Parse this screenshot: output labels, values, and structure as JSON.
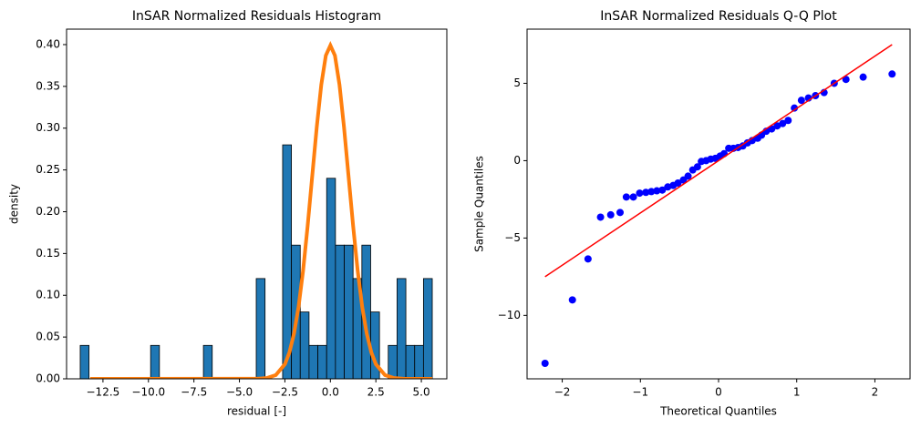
{
  "chart_data": [
    {
      "type": "histogram",
      "title": "InSAR Normalized Residuals Histogram",
      "xlabel": "residual [-]",
      "ylabel": "density",
      "bins": [
        -13.75,
        -13.266,
        -12.783,
        -12.299,
        -11.815,
        -11.331,
        -10.848,
        -10.364,
        -9.88,
        -9.396,
        -8.913,
        -8.429,
        -7.945,
        -7.461,
        -6.978,
        -6.494,
        -6.01,
        -5.526,
        -5.043,
        -4.559,
        -4.075,
        -3.591,
        -3.108,
        -2.624,
        -2.14,
        -1.656,
        -1.173,
        -0.689,
        -0.205,
        0.279,
        0.763,
        1.246,
        1.73,
        2.214,
        2.698,
        3.181,
        3.665,
        4.149,
        4.633,
        5.116,
        5.6
      ],
      "values": [
        0.04,
        0,
        0,
        0,
        0,
        0,
        0,
        0,
        0.04,
        0,
        0,
        0,
        0,
        0,
        0.04,
        0,
        0,
        0,
        0,
        0,
        0.12,
        0,
        0,
        0.28,
        0.16,
        0.08,
        0.04,
        0.04,
        0.24,
        0.16,
        0.16,
        0.12,
        0.16,
        0.08,
        0,
        0.04,
        0.12,
        0.04,
        0.04,
        0.12
      ],
      "color": "#1f77b4",
      "line": {
        "color": "#ff7f0e",
        "x": [
          -13.2,
          -4,
          -3.5,
          -3,
          -2.5,
          -2.25,
          -2,
          -1.75,
          -1.5,
          -1.25,
          -1,
          -0.75,
          -0.5,
          -0.25,
          0,
          0.25,
          0.5,
          0.75,
          1,
          1.25,
          1.5,
          1.75,
          2,
          2.25,
          2.5,
          3,
          3.5,
          4,
          5.6
        ],
        "values": [
          0,
          0.0001,
          0.0009,
          0.0044,
          0.0175,
          0.0317,
          0.054,
          0.086,
          0.1295,
          0.183,
          0.242,
          0.301,
          0.352,
          0.387,
          0.399,
          0.387,
          0.352,
          0.301,
          0.242,
          0.183,
          0.1295,
          0.086,
          0.054,
          0.0317,
          0.0175,
          0.0044,
          0.0009,
          0.0001,
          0
        ]
      },
      "xlim": [
        -14.5,
        6.4
      ],
      "ylim": [
        0,
        0.4185
      ],
      "xticks": [
        {
          "value": -12.5,
          "label": "−12.5"
        },
        {
          "value": -10,
          "label": "−10.0"
        },
        {
          "value": -7.5,
          "label": "−7.5"
        },
        {
          "value": -5,
          "label": "−5.0"
        },
        {
          "value": -2.5,
          "label": "−2.5"
        },
        {
          "value": 0,
          "label": "0.0"
        },
        {
          "value": 2.5,
          "label": "2.5"
        },
        {
          "value": 5,
          "label": "5.0"
        }
      ],
      "yticks": [
        {
          "value": 0,
          "label": "0.00"
        },
        {
          "value": 0.05,
          "label": "0.05"
        },
        {
          "value": 0.1,
          "label": "0.10"
        },
        {
          "value": 0.15,
          "label": "0.15"
        },
        {
          "value": 0.2,
          "label": "0.20"
        },
        {
          "value": 0.25,
          "label": "0.25"
        },
        {
          "value": 0.3,
          "label": "0.30"
        },
        {
          "value": 0.35,
          "label": "0.35"
        },
        {
          "value": 0.4,
          "label": "0.40"
        }
      ]
    },
    {
      "type": "scatter",
      "title": "InSAR Normalized Residuals Q-Q Plot",
      "xlabel": "Theoretical Quantiles",
      "ylabel": "Sample Quantiles",
      "x": [
        -2.22,
        -1.87,
        -1.67,
        -1.51,
        -1.38,
        -1.26,
        -1.18,
        -1.09,
        -1.01,
        -0.93,
        -0.86,
        -0.79,
        -0.72,
        -0.65,
        -0.58,
        -0.52,
        -0.45,
        -0.39,
        -0.33,
        -0.27,
        -0.22,
        -0.16,
        -0.1,
        -0.04,
        0.02,
        0.07,
        0.13,
        0.19,
        0.25,
        0.31,
        0.37,
        0.43,
        0.5,
        0.55,
        0.61,
        0.68,
        0.75,
        0.82,
        0.89,
        0.97,
        1.06,
        1.15,
        1.24,
        1.35,
        1.48,
        1.63,
        1.85,
        2.22
      ],
      "values": [
        -13.1,
        -9.0,
        -6.35,
        -3.65,
        -3.5,
        -3.35,
        -2.35,
        -2.35,
        -2.1,
        -2.05,
        -2.0,
        -1.95,
        -1.9,
        -1.7,
        -1.6,
        -1.45,
        -1.25,
        -1.0,
        -0.6,
        -0.4,
        -0.05,
        0.0,
        0.1,
        0.15,
        0.3,
        0.45,
        0.8,
        0.8,
        0.85,
        0.95,
        1.15,
        1.3,
        1.45,
        1.65,
        1.9,
        2.05,
        2.25,
        2.4,
        2.6,
        3.4,
        3.9,
        4.05,
        4.2,
        4.4,
        5.0,
        5.25,
        5.4,
        5.6
      ],
      "color": "#0000ff",
      "line": {
        "color": "#ff0000",
        "x": [
          -2.22,
          2.22
        ],
        "values": [
          -7.5,
          7.5
        ]
      },
      "xlim": [
        -2.45,
        2.45
      ],
      "ylim": [
        -14.1,
        8.5
      ],
      "xticks": [
        {
          "value": -2,
          "label": "−2"
        },
        {
          "value": -1,
          "label": "−1"
        },
        0,
        1,
        2
      ],
      "yticks": [
        {
          "value": -10,
          "label": "−10"
        },
        {
          "value": -5,
          "label": "−5"
        },
        0,
        5
      ]
    }
  ]
}
